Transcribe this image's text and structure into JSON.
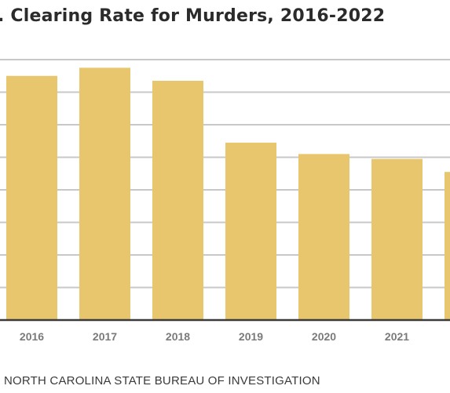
{
  "chart_data": {
    "type": "bar",
    "title": ". Clearing Rate for Murders, 2016-2022",
    "categories": [
      "2016",
      "2017",
      "2018",
      "2019",
      "2020",
      "2021",
      "2022"
    ],
    "values": [
      75,
      77.5,
      73.5,
      54.5,
      51,
      49.5,
      45.5
    ],
    "ylim": [
      0,
      80
    ],
    "y_gridline_step": 10,
    "grid": true,
    "source": "NORTH CAROLINA STATE BUREAU OF INVESTIGATION",
    "colors": {
      "bar": "#e8c66e",
      "gridline": "#c8c8c8",
      "baseline": "#3a3a3a",
      "tick_text": "#7a7a7a",
      "title_text": "#2b2b2b"
    }
  }
}
